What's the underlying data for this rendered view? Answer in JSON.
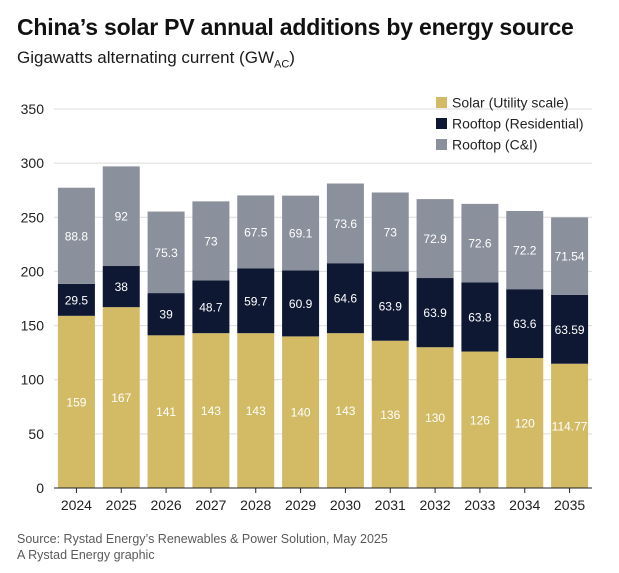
{
  "header": {
    "title": "China’s solar PV annual additions by energy source",
    "subtitle_main": "Gigawatts alternating current (GW",
    "subtitle_sub": "AC",
    "subtitle_end": ")"
  },
  "footer": {
    "source": "Source: Rystad Energy’s Renewables & Power Solution, May 2025",
    "credit": "A Rystad Energy graphic"
  },
  "chart_data": {
    "type": "bar",
    "stacked": true,
    "title": "China’s solar PV annual additions by energy source",
    "ylabel": "Gigawatts alternating current (GWAC)",
    "xlabel": "",
    "ylim": [
      0,
      350
    ],
    "yticks": [
      0,
      50,
      100,
      150,
      200,
      250,
      300,
      350
    ],
    "grid": true,
    "legend_position": "top-right",
    "categories": [
      "2024",
      "2025",
      "2026",
      "2027",
      "2028",
      "2029",
      "2030",
      "2031",
      "2032",
      "2033",
      "2034",
      "2035"
    ],
    "series": [
      {
        "name": "Solar (Utility scale)",
        "color": "#d3bb66",
        "label_color": "#ffffff",
        "values": [
          159,
          167,
          141,
          143,
          143,
          140,
          143,
          136,
          130,
          126,
          120,
          114.77
        ],
        "labels": [
          "159",
          "167",
          "141",
          "143",
          "143",
          "140",
          "143",
          "136",
          "130",
          "126",
          "120",
          "114.77"
        ]
      },
      {
        "name": "Rooftop (Residential)",
        "color": "#0e1833",
        "label_color": "#ffffff",
        "values": [
          29.5,
          38,
          39,
          48.7,
          59.7,
          60.9,
          64.6,
          63.9,
          63.9,
          63.8,
          63.6,
          63.59
        ],
        "labels": [
          "29.5",
          "38",
          "39",
          "48.7",
          "59.7",
          "60.9",
          "64.6",
          "63.9",
          "63.9",
          "63.8",
          "63.6",
          "63.59"
        ]
      },
      {
        "name": "Rooftop (C&I)",
        "color": "#8b919c",
        "label_color": "#ffffff",
        "values": [
          88.8,
          92,
          75.3,
          73,
          67.5,
          69.1,
          73.6,
          73,
          72.9,
          72.6,
          72.2,
          71.54
        ],
        "labels": [
          "88.8",
          "92",
          "75.3",
          "73",
          "67.5",
          "69.1",
          "73.6",
          "73",
          "72.9",
          "72.6",
          "72.2",
          "71.54"
        ]
      }
    ]
  }
}
